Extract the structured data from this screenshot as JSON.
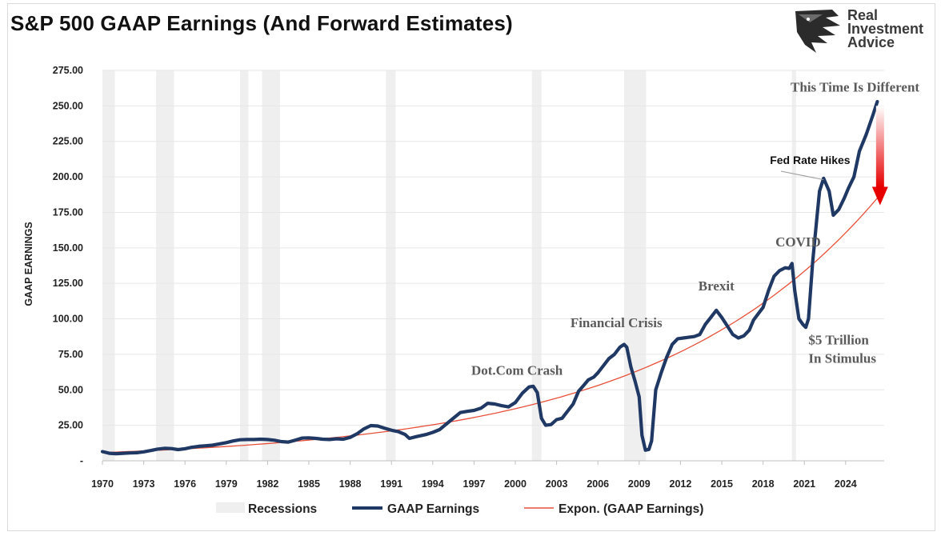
{
  "header": {
    "title": "S&P 500 GAAP Earnings (And Forward Estimates)",
    "brand_line1": "Real",
    "brand_line2": "Investment",
    "brand_line3": "Advice"
  },
  "colors": {
    "earnings": "#1f3864",
    "trend": "#e8503a",
    "recession": "#efefef",
    "arrow": "#e60000"
  },
  "chart_data": {
    "type": "line",
    "ylabel": "GAAP EARNINGS",
    "ylim": [
      0,
      275
    ],
    "xlim": [
      1970,
      2026.8
    ],
    "y_ticks": [
      "275.00",
      "250.00",
      "225.00",
      "200.00",
      "175.00",
      "150.00",
      "125.00",
      "100.00",
      "75.00",
      "50.00",
      "25.00",
      "-"
    ],
    "y_tick_values": [
      275,
      250,
      225,
      200,
      175,
      150,
      125,
      100,
      75,
      50,
      25,
      0
    ],
    "x_ticks": [
      "1970",
      "1973",
      "1976",
      "1979",
      "1982",
      "1985",
      "1988",
      "1991",
      "1994",
      "1997",
      "2000",
      "2003",
      "2006",
      "2009",
      "2012",
      "2015",
      "2018",
      "2021",
      "2024"
    ],
    "grid": true,
    "legend_position": "bottom",
    "legend": {
      "recessions": "Recessions",
      "earnings": "GAAP Earnings",
      "trend": "Expon. (GAAP Earnings)"
    },
    "recessions": [
      [
        1970.0,
        1970.9
      ],
      [
        1973.9,
        1975.2
      ],
      [
        1980.0,
        1980.6
      ],
      [
        1981.6,
        1982.9
      ],
      [
        1990.6,
        1991.3
      ],
      [
        2001.2,
        2001.9
      ],
      [
        2007.9,
        2009.5
      ],
      [
        2020.1,
        2020.4
      ]
    ],
    "series": [
      {
        "name": "GAAP Earnings",
        "points": [
          [
            1970.0,
            6.5
          ],
          [
            1970.5,
            5.3
          ],
          [
            1971.0,
            5.0
          ],
          [
            1971.5,
            5.3
          ],
          [
            1972.0,
            5.5
          ],
          [
            1972.5,
            5.7
          ],
          [
            1973.0,
            6.3
          ],
          [
            1973.5,
            7.2
          ],
          [
            1974.0,
            8.2
          ],
          [
            1974.5,
            8.8
          ],
          [
            1975.0,
            8.6
          ],
          [
            1975.5,
            7.9
          ],
          [
            1976.0,
            8.5
          ],
          [
            1976.5,
            9.5
          ],
          [
            1977.0,
            10.2
          ],
          [
            1978.0,
            11.0
          ],
          [
            1979.0,
            12.8
          ],
          [
            1979.5,
            14.0
          ],
          [
            1980.0,
            14.8
          ],
          [
            1980.5,
            15.0
          ],
          [
            1981.0,
            15.0
          ],
          [
            1981.5,
            15.2
          ],
          [
            1982.0,
            15.0
          ],
          [
            1982.5,
            14.5
          ],
          [
            1983.0,
            13.5
          ],
          [
            1983.5,
            13.2
          ],
          [
            1984.0,
            14.5
          ],
          [
            1984.5,
            16.0
          ],
          [
            1985.0,
            16.2
          ],
          [
            1985.5,
            15.8
          ],
          [
            1986.0,
            15.2
          ],
          [
            1986.5,
            15.0
          ],
          [
            1987.0,
            15.5
          ],
          [
            1987.5,
            15.2
          ],
          [
            1988.0,
            16.5
          ],
          [
            1988.5,
            19.0
          ],
          [
            1989.0,
            22.5
          ],
          [
            1989.5,
            24.8
          ],
          [
            1990.0,
            24.5
          ],
          [
            1990.5,
            23.0
          ],
          [
            1991.0,
            21.5
          ],
          [
            1991.5,
            20.5
          ],
          [
            1992.0,
            18.5
          ],
          [
            1992.3,
            15.8
          ],
          [
            1992.8,
            17.0
          ],
          [
            1993.5,
            18.5
          ],
          [
            1994.0,
            20.0
          ],
          [
            1994.5,
            22.0
          ],
          [
            1995.0,
            26.0
          ],
          [
            1995.5,
            30.0
          ],
          [
            1996.0,
            34.0
          ],
          [
            1996.5,
            34.8
          ],
          [
            1997.0,
            35.5
          ],
          [
            1997.5,
            37.0
          ],
          [
            1998.0,
            40.5
          ],
          [
            1998.5,
            40.0
          ],
          [
            1999.0,
            38.8
          ],
          [
            1999.5,
            38.0
          ],
          [
            2000.0,
            41.0
          ],
          [
            2000.5,
            47.5
          ],
          [
            2001.0,
            52.0
          ],
          [
            2001.3,
            52.5
          ],
          [
            2001.6,
            48.0
          ],
          [
            2001.9,
            30.0
          ],
          [
            2002.2,
            25.0
          ],
          [
            2002.6,
            25.5
          ],
          [
            2003.0,
            29.0
          ],
          [
            2003.4,
            30.0
          ],
          [
            2003.8,
            35.0
          ],
          [
            2004.2,
            40.0
          ],
          [
            2004.6,
            49.0
          ],
          [
            2005.0,
            53.5
          ],
          [
            2005.3,
            57.0
          ],
          [
            2005.7,
            59.0
          ],
          [
            2006.0,
            62.0
          ],
          [
            2006.4,
            67.0
          ],
          [
            2006.8,
            72.0
          ],
          [
            2007.2,
            75.0
          ],
          [
            2007.6,
            80.0
          ],
          [
            2007.9,
            82.0
          ],
          [
            2008.1,
            80.0
          ],
          [
            2008.4,
            66.0
          ],
          [
            2008.7,
            56.0
          ],
          [
            2009.0,
            45.0
          ],
          [
            2009.2,
            18.0
          ],
          [
            2009.45,
            7.5
          ],
          [
            2009.7,
            8.0
          ],
          [
            2009.9,
            14.0
          ],
          [
            2010.2,
            50.0
          ],
          [
            2010.6,
            62.0
          ],
          [
            2011.0,
            73.0
          ],
          [
            2011.4,
            82.0
          ],
          [
            2011.8,
            86.0
          ],
          [
            2012.2,
            86.5
          ],
          [
            2012.6,
            87.0
          ],
          [
            2013.0,
            87.5
          ],
          [
            2013.4,
            89.0
          ],
          [
            2013.8,
            96.0
          ],
          [
            2014.2,
            101.0
          ],
          [
            2014.6,
            106.0
          ],
          [
            2015.0,
            101.0
          ],
          [
            2015.4,
            95.0
          ],
          [
            2015.8,
            89.0
          ],
          [
            2016.2,
            86.5
          ],
          [
            2016.6,
            88.0
          ],
          [
            2017.0,
            92.0
          ],
          [
            2017.3,
            99.0
          ],
          [
            2017.6,
            103.0
          ],
          [
            2018.0,
            108.0
          ],
          [
            2018.4,
            120.0
          ],
          [
            2018.8,
            130.0
          ],
          [
            2019.2,
            134.0
          ],
          [
            2019.6,
            136.0
          ],
          [
            2019.9,
            135.5
          ],
          [
            2020.1,
            139.0
          ],
          [
            2020.3,
            120.0
          ],
          [
            2020.6,
            100.0
          ],
          [
            2020.9,
            96.0
          ],
          [
            2021.1,
            94.0
          ],
          [
            2021.3,
            100.0
          ],
          [
            2021.6,
            140.0
          ],
          [
            2021.9,
            170.0
          ],
          [
            2022.1,
            190.0
          ],
          [
            2022.4,
            199.0
          ],
          [
            2022.8,
            190.0
          ],
          [
            2023.1,
            173.0
          ],
          [
            2023.5,
            177.0
          ],
          [
            2023.9,
            185.0
          ],
          [
            2024.2,
            192.0
          ],
          [
            2024.6,
            200.0
          ],
          [
            2025.0,
            218.0
          ],
          [
            2025.5,
            230.0
          ],
          [
            2026.0,
            244.0
          ],
          [
            2026.3,
            253.0
          ]
        ]
      },
      {
        "name": "Expon. (GAAP Earnings)",
        "trend_start": [
          1970.0,
          5.8
        ],
        "trend_end": [
          2026.3,
          185.0
        ]
      }
    ],
    "annotations": [
      {
        "text": "This Time Is Different",
        "x": 2020.0,
        "y": 260.0,
        "style": "ann"
      },
      {
        "text": "Fed Rate Hikes",
        "x": 2018.5,
        "y": 209.0,
        "style": "small"
      },
      {
        "text": "COVID",
        "x": 2018.9,
        "y": 151.0,
        "style": "ann"
      },
      {
        "text": "Brexit",
        "x": 2013.3,
        "y": 120.0,
        "style": "ann"
      },
      {
        "text": "Financial Crisis",
        "x": 2004.0,
        "y": 94.0,
        "style": "ann"
      },
      {
        "text": "Dot.Com Crash",
        "x": 1996.8,
        "y": 60.5,
        "style": "ann"
      },
      {
        "text": "$5 Trillion",
        "x": 2021.3,
        "y": 82.0,
        "style": "ann"
      },
      {
        "text": "In Stimulus",
        "x": 2021.3,
        "y": 69.0,
        "style": "ann"
      }
    ]
  }
}
